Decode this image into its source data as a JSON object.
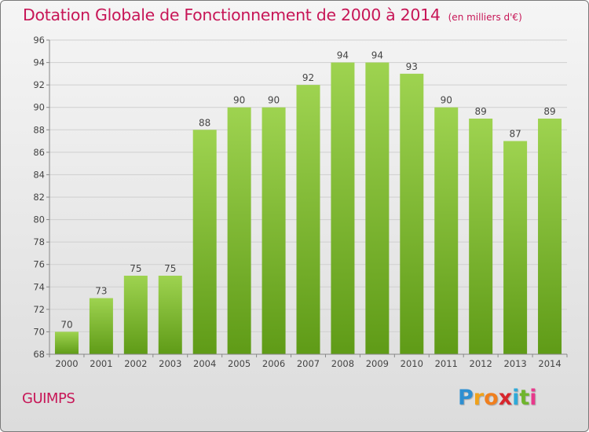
{
  "title": "Dotation Globale de Fonctionnement de 2000 à 2014",
  "subtitle": "(en milliers d'€)",
  "place": "GUIMPS",
  "logo": {
    "letters": [
      "P",
      "r",
      "o",
      "x",
      "i",
      "t",
      "i"
    ],
    "colors": [
      "#2e8fd1",
      "#f0a21b",
      "#f07f1e",
      "#d7262d",
      "#2ea9d8",
      "#6fb52d",
      "#e8398c"
    ]
  },
  "colors": {
    "title": "#c71657",
    "bar_top": "#9ed350",
    "bar_bottom": "#5f9b17",
    "background_top": "#f5f5f5",
    "background_bottom": "#dcdcdc"
  },
  "chart_data": {
    "type": "bar",
    "categories": [
      "2000",
      "2001",
      "2002",
      "2003",
      "2004",
      "2005",
      "2006",
      "2007",
      "2008",
      "2009",
      "2010",
      "2011",
      "2012",
      "2013",
      "2014"
    ],
    "values": [
      70,
      73,
      75,
      75,
      88,
      90,
      90,
      92,
      94,
      94,
      93,
      90,
      89,
      87,
      89
    ],
    "ylim": [
      68,
      96
    ],
    "yticks": [
      68,
      70,
      72,
      74,
      76,
      78,
      80,
      82,
      84,
      86,
      88,
      90,
      92,
      94,
      96
    ],
    "grid": true,
    "data_labels": true
  }
}
